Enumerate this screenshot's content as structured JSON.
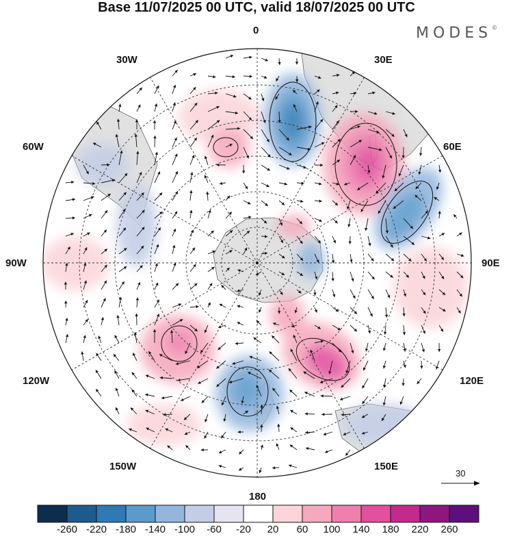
{
  "title": "Base 11/07/2025 00 UTC, valid 18/07/2025 00 UTC",
  "brand": "MODES",
  "brand_mark": "©",
  "longitude_labels": {
    "top": "0",
    "top_right": "30E",
    "right_upper": "60E",
    "right": "90E",
    "right_lower": "120E",
    "bottom_right": "150E",
    "bottom": "180",
    "bottom_left": "150W",
    "left_lower": "120W",
    "left": "90W",
    "left_upper": "60W",
    "top_left": "30W"
  },
  "wind_scale": {
    "value": "30",
    "icon": "arrow-right-icon"
  },
  "colorbar": {
    "ticks": [
      "-260",
      "-220",
      "-180",
      "-140",
      "-100",
      "-60",
      "-20",
      "20",
      "60",
      "100",
      "140",
      "180",
      "220",
      "260"
    ],
    "colors": [
      "#0d2d4f",
      "#1d5b8f",
      "#2f79b5",
      "#5b9bcc",
      "#94b6dd",
      "#c3cde6",
      "#e6e4f1",
      "#ffffff",
      "#fbd5da",
      "#f6a9bd",
      "#ef7fae",
      "#e2509f",
      "#c42a8c",
      "#8e1681",
      "#5d0f7b"
    ]
  },
  "colors": {
    "land": "#e1e1e1",
    "coast": "#666666",
    "grid": "#333333"
  }
}
